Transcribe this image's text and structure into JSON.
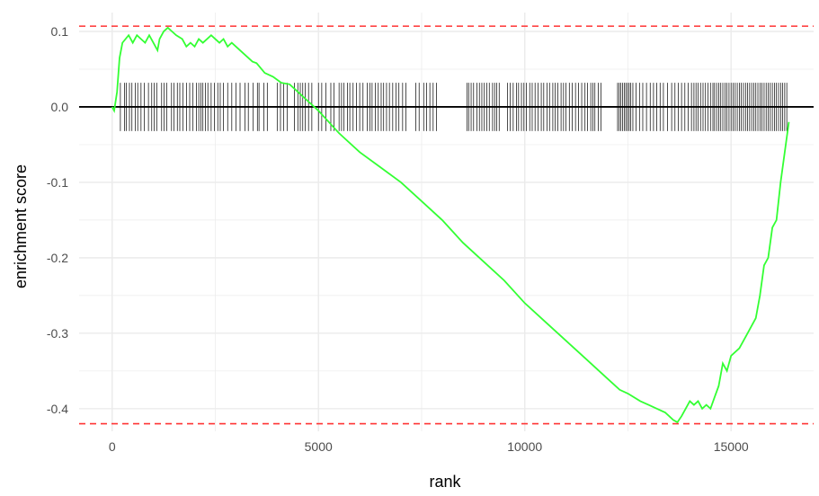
{
  "chart_data": {
    "type": "line",
    "title": "",
    "xlabel": "rank",
    "ylabel": "enrichment score",
    "xlim": [
      -800,
      17000
    ],
    "ylim": [
      -0.43,
      0.125
    ],
    "x_ticks": [
      0,
      5000,
      10000,
      15000
    ],
    "x_tick_labels": [
      "0",
      "5000",
      "10000",
      "15000"
    ],
    "y_ticks": [
      0.1,
      0.0,
      -0.1,
      -0.2,
      -0.3,
      -0.4
    ],
    "y_tick_labels": [
      "0.1",
      "0.0",
      "-0.1",
      "-0.2",
      "-0.3",
      "-0.4"
    ],
    "grid": true,
    "legend": "none",
    "colors": {
      "curve": "#33ff33",
      "threshold": "#ff3333",
      "zero_line": "#000000",
      "hits": "#000000",
      "grid": "#ebebeb"
    },
    "thresholds": [
      0.107,
      -0.42
    ],
    "zero_line": 0,
    "series": [
      {
        "x": [
          0,
          50,
          120,
          180,
          250,
          400,
          500,
          600,
          700,
          800,
          900,
          1000,
          1100,
          1150,
          1250,
          1350,
          1450,
          1550,
          1700,
          1800,
          1900,
          2000,
          2100,
          2200,
          2300,
          2400,
          2500,
          2600,
          2700,
          2800,
          2900,
          3000,
          3200,
          3400,
          3500,
          3700,
          3900,
          4100,
          4300,
          4500,
          4700,
          5000,
          5500,
          6000,
          6500,
          7000,
          7500,
          8000,
          8500,
          9000,
          9500,
          10000,
          10500,
          11000,
          11500,
          12000,
          12300,
          12500,
          12800,
          13000,
          13200,
          13400,
          13500,
          13600,
          13700,
          13800,
          13900,
          14000,
          14100,
          14200,
          14300,
          14400,
          14500,
          14600,
          14700,
          14800,
          14900,
          15000,
          15200,
          15400,
          15600,
          15700,
          15800,
          15900,
          16000,
          16100,
          16200,
          16300,
          16400
        ],
        "y": [
          0.0,
          -0.005,
          0.02,
          0.065,
          0.085,
          0.095,
          0.085,
          0.095,
          0.09,
          0.085,
          0.095,
          0.085,
          0.075,
          0.09,
          0.1,
          0.105,
          0.1,
          0.095,
          0.09,
          0.08,
          0.085,
          0.08,
          0.09,
          0.085,
          0.09,
          0.095,
          0.09,
          0.085,
          0.09,
          0.08,
          0.085,
          0.08,
          0.07,
          0.06,
          0.058,
          0.045,
          0.04,
          0.032,
          0.03,
          0.02,
          0.01,
          -0.005,
          -0.035,
          -0.06,
          -0.08,
          -0.1,
          -0.125,
          -0.15,
          -0.18,
          -0.205,
          -0.23,
          -0.26,
          -0.285,
          -0.31,
          -0.335,
          -0.36,
          -0.375,
          -0.38,
          -0.39,
          -0.395,
          -0.4,
          -0.405,
          -0.41,
          -0.415,
          -0.418,
          -0.41,
          -0.4,
          -0.39,
          -0.395,
          -0.39,
          -0.4,
          -0.395,
          -0.4,
          -0.385,
          -0.37,
          -0.34,
          -0.35,
          -0.33,
          -0.32,
          -0.3,
          -0.28,
          -0.25,
          -0.21,
          -0.2,
          -0.16,
          -0.15,
          -0.1,
          -0.06,
          -0.02
        ]
      }
    ],
    "hits": [
      200,
      300,
      340,
      420,
      480,
      560,
      620,
      700,
      780,
      880,
      960,
      1020,
      1080,
      1200,
      1260,
      1320,
      1440,
      1500,
      1580,
      1640,
      1720,
      1800,
      1880,
      1960,
      2040,
      2100,
      2150,
      2200,
      2260,
      2320,
      2400,
      2480,
      2560,
      2620,
      2700,
      2800,
      2900,
      3000,
      3100,
      3220,
      3300,
      3420,
      3520,
      3560,
      3680,
      3760,
      4000,
      4080,
      4160,
      4240,
      4420,
      4500,
      4560,
      4620,
      4680,
      4760,
      4840,
      5000,
      5080,
      5180,
      5300,
      5380,
      5500,
      5560,
      5620,
      5700,
      5760,
      5840,
      5920,
      6000,
      6080,
      6180,
      6250,
      6300,
      6380,
      6450,
      6520,
      6580,
      6650,
      6720,
      6800,
      6880,
      6950,
      7040,
      7120,
      7360,
      7440,
      7550,
      7620,
      7700,
      7780,
      7860,
      8600,
      8640,
      8700,
      8760,
      8840,
      8900,
      8960,
      9020,
      9080,
      9140,
      9220,
      9270,
      9320,
      9380,
      9580,
      9650,
      9720,
      9800,
      9850,
      9920,
      9980,
      10040,
      10120,
      10180,
      10250,
      10320,
      10400,
      10460,
      10540,
      10600,
      10680,
      10740,
      10800,
      10880,
      10940,
      11000,
      11080,
      11150,
      11230,
      11300,
      11380,
      11460,
      11520,
      11600,
      11650,
      11700,
      11780,
      11850,
      12250,
      12290,
      12330,
      12370,
      12410,
      12450,
      12490,
      12530,
      12570,
      12620,
      12700,
      12780,
      12860,
      12950,
      13040,
      13120,
      13200,
      13280,
      13360,
      13460,
      13560,
      13640,
      13720,
      13800,
      13880,
      13960,
      14040,
      14100,
      14150,
      14200,
      14260,
      14320,
      14380,
      14440,
      14500,
      14560,
      14600,
      14650,
      14700,
      14750,
      14800,
      14850,
      14900,
      14950,
      15000,
      15050,
      15100,
      15150,
      15200,
      15250,
      15300,
      15350,
      15400,
      15450,
      15500,
      15550,
      15600,
      15650,
      15700,
      15750,
      15800,
      15850,
      15900,
      15950,
      16000,
      16050,
      16100,
      16150,
      16200,
      16250,
      16300,
      16350
    ]
  }
}
